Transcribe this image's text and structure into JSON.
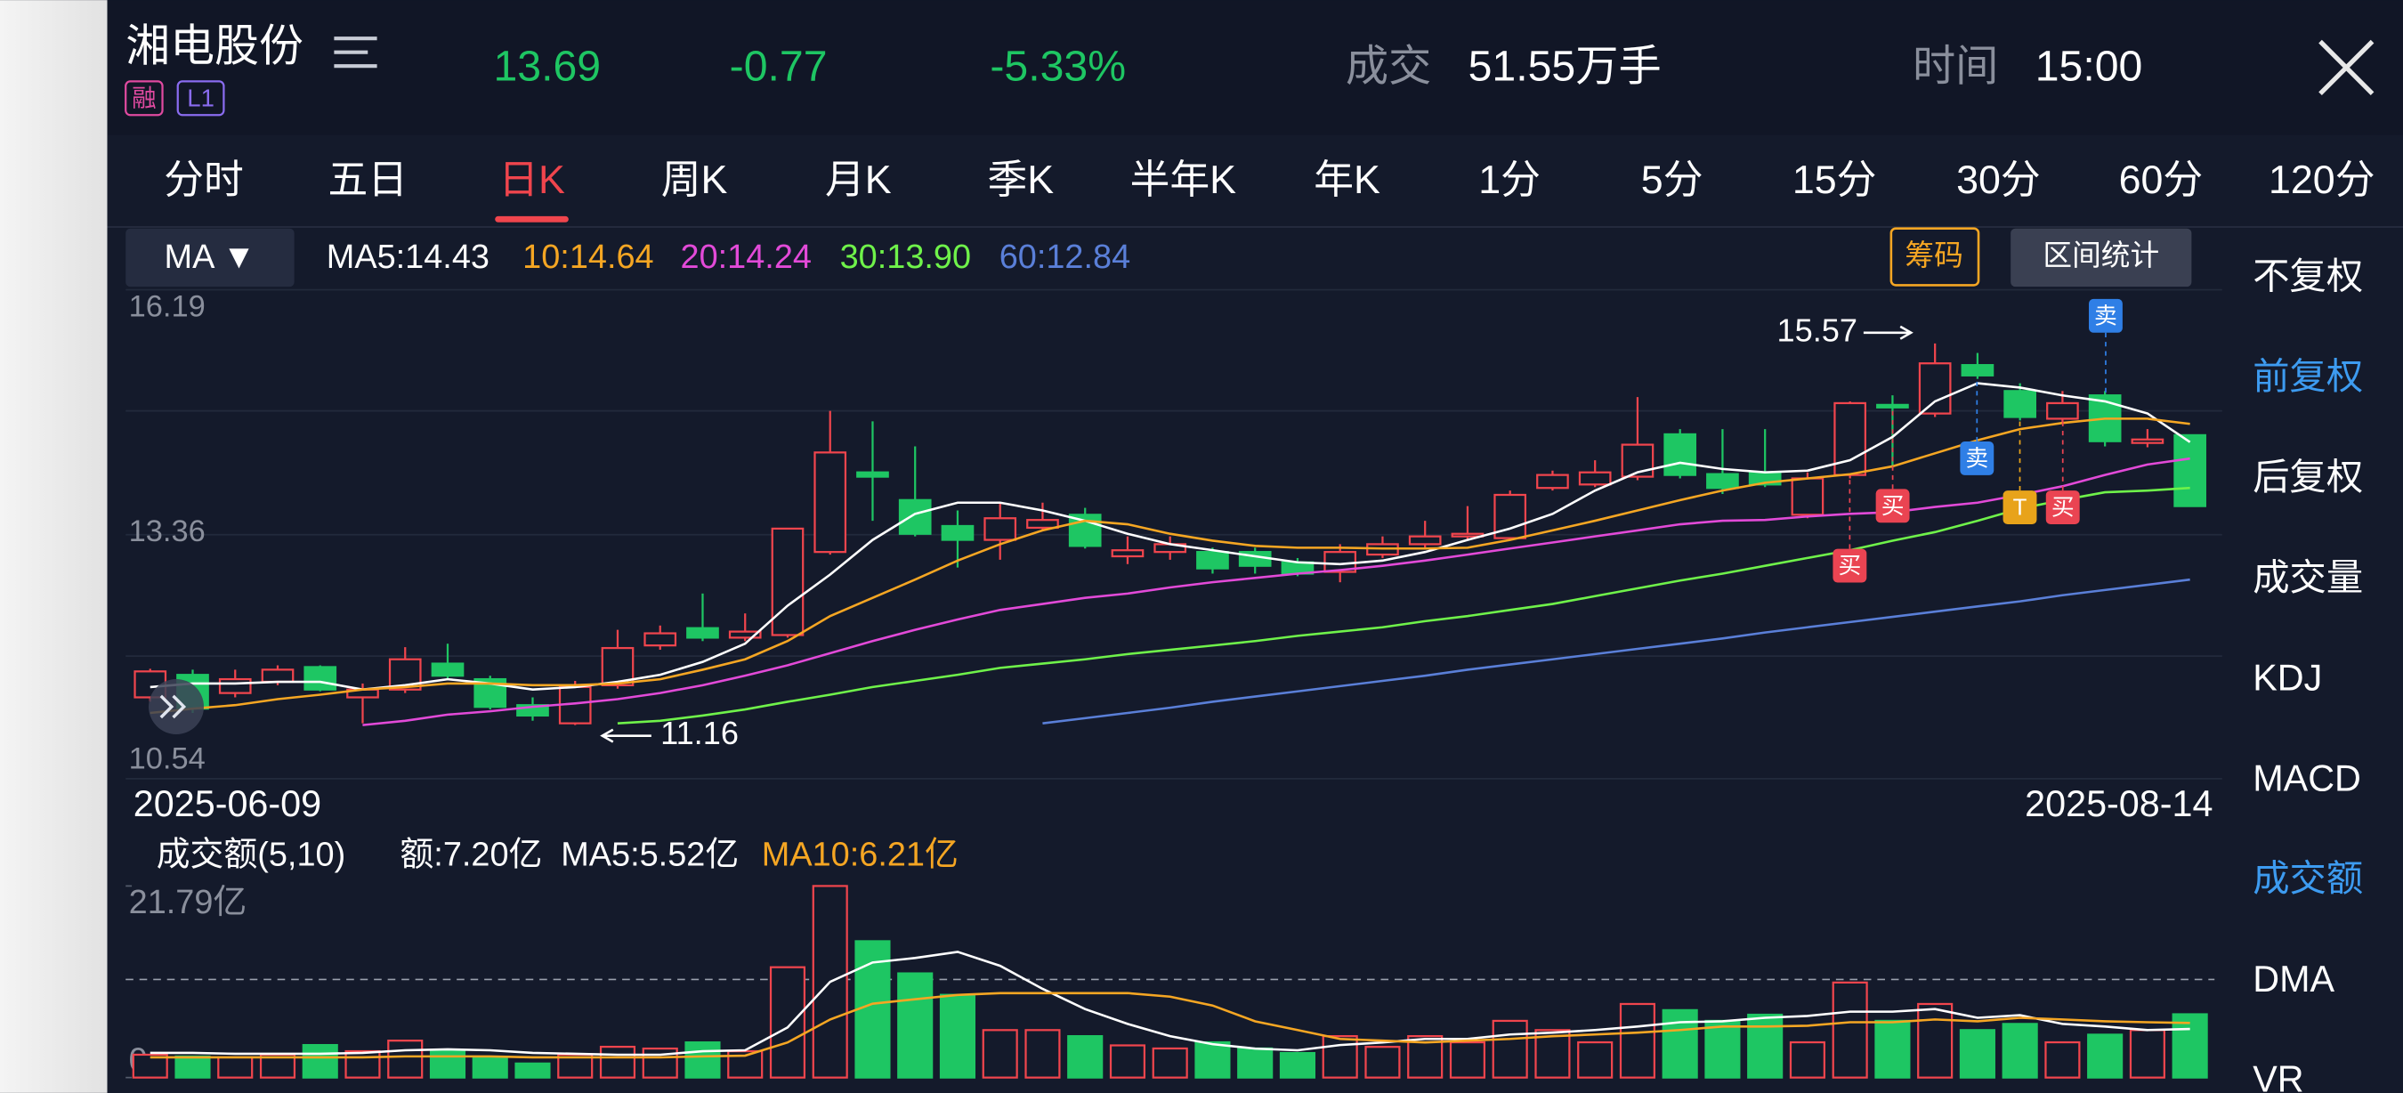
{
  "header": {
    "name": "湘电股份",
    "tags": [
      "融",
      "L1"
    ],
    "price": "13.69",
    "change": "-0.77",
    "change_pct": "-5.33%",
    "volume_label": "成交",
    "volume": "51.55万手",
    "time_label": "时间",
    "time": "15:00"
  },
  "tabs": [
    "分时",
    "五日",
    "日K",
    "周K",
    "月K",
    "季K",
    "半年K",
    "年K",
    "1分",
    "5分",
    "15分",
    "30分",
    "60分",
    "120分"
  ],
  "indicator_selector": "MA ▼",
  "buttons": [
    "筹码",
    "区间统计"
  ],
  "side_menu": [
    "不复权",
    "前复权",
    "后复权",
    "成交量",
    "KDJ",
    "MACD",
    "成交额",
    "DMA",
    "VR"
  ],
  "signals": [
    "卖",
    "卖",
    "买",
    "买",
    "T",
    "买"
  ],
  "chart_data": [
    {
      "type": "candlestick",
      "categories": [
        "2025-06-09",
        null,
        null,
        null,
        null,
        null,
        null,
        null,
        null,
        null,
        null,
        null,
        null,
        null,
        null,
        null,
        null,
        null,
        null,
        null,
        null,
        null,
        null,
        null,
        null,
        null,
        null,
        null,
        null,
        null,
        null,
        null,
        null,
        null,
        null,
        null,
        null,
        null,
        null,
        null,
        null,
        null,
        null,
        null,
        null,
        null,
        null,
        null,
        "2025-08-14"
      ],
      "open": [
        11.48,
        11.74,
        11.53,
        11.66,
        11.83,
        11.48,
        11.57,
        11.87,
        11.69,
        11.39,
        11.18,
        11.62,
        12.08,
        12.28,
        12.17,
        12.2,
        13.16,
        14.08,
        13.76,
        13.46,
        13.3,
        13.44,
        13.59,
        13.11,
        13.16,
        13.16,
        13.16,
        13.04,
        12.93,
        13.13,
        13.25,
        13.34,
        13.32,
        13.9,
        13.94,
        14.03,
        14.52,
        14.06,
        14.08,
        13.59,
        14.05,
        14.86,
        14.76,
        15.32,
        15.02,
        14.7,
        14.97,
        14.42,
        14.51
      ],
      "high": [
        11.81,
        11.8,
        11.8,
        11.85,
        11.85,
        11.64,
        12.06,
        12.1,
        11.73,
        11.48,
        11.67,
        12.26,
        12.31,
        12.68,
        12.45,
        13.43,
        14.79,
        14.67,
        14.38,
        13.64,
        13.73,
        13.73,
        13.67,
        13.34,
        13.34,
        13.21,
        13.21,
        13.09,
        13.25,
        13.34,
        13.52,
        13.69,
        13.87,
        14.1,
        14.22,
        14.95,
        14.58,
        14.58,
        14.58,
        14.08,
        14.9,
        14.97,
        15.57,
        15.46,
        15.11,
        15.02,
        15.02,
        14.58,
        14.51
      ],
      "low": [
        11.43,
        11.3,
        11.48,
        11.62,
        11.55,
        11.18,
        11.53,
        11.69,
        11.34,
        11.21,
        11.16,
        11.58,
        12.03,
        12.13,
        12.13,
        12.17,
        13.13,
        13.52,
        13.34,
        12.98,
        13.07,
        13.41,
        13.2,
        13.02,
        13.07,
        12.91,
        12.91,
        12.88,
        12.81,
        13.09,
        13.2,
        13.29,
        13.29,
        13.87,
        13.91,
        13.99,
        14.01,
        13.83,
        13.91,
        13.55,
        14.01,
        14.13,
        14.72,
        15.16,
        14.68,
        14.65,
        14.38,
        14.37,
        13.69
      ],
      "close": [
        11.78,
        11.35,
        11.69,
        11.8,
        11.57,
        11.57,
        11.92,
        11.73,
        11.37,
        11.27,
        11.6,
        12.05,
        12.22,
        12.17,
        12.24,
        13.43,
        14.31,
        14.03,
        13.37,
        13.3,
        13.55,
        13.53,
        13.23,
        13.18,
        13.25,
        12.97,
        13.0,
        12.91,
        13.16,
        13.25,
        13.34,
        13.37,
        13.82,
        14.05,
        14.08,
        14.4,
        14.05,
        13.9,
        13.94,
        14.01,
        14.88,
        14.83,
        15.34,
        15.2,
        14.72,
        14.88,
        14.44,
        14.46,
        13.69
      ],
      "up_color": "#f0454d",
      "down_color": "#1ec663",
      "ylim": [
        10.54,
        16.19
      ],
      "yticks": [
        10.54,
        13.36,
        16.19
      ],
      "grid": true,
      "annotations": [
        15.57,
        11.16
      ],
      "series": [
        {
          "name": "MA5:14.43",
          "color": "#ffffff",
          "values": [
            11.6,
            11.64,
            11.64,
            11.66,
            11.66,
            11.57,
            11.62,
            11.69,
            11.64,
            11.57,
            11.6,
            11.66,
            11.74,
            11.89,
            12.1,
            12.54,
            12.9,
            13.3,
            13.6,
            13.73,
            13.73,
            13.64,
            13.52,
            13.37,
            13.25,
            13.18,
            13.11,
            13.04,
            13.02,
            13.06,
            13.16,
            13.3,
            13.43,
            13.6,
            13.87,
            14.08,
            14.19,
            14.12,
            14.08,
            14.1,
            14.22,
            14.49,
            14.9,
            15.11,
            15.06,
            14.97,
            14.9,
            14.76,
            14.43
          ]
        },
        {
          "name": "10:14.64",
          "color": "#f5a623",
          "values": [
            11.3,
            11.35,
            11.39,
            11.46,
            11.51,
            11.57,
            11.6,
            11.64,
            11.64,
            11.62,
            11.62,
            11.64,
            11.69,
            11.8,
            11.92,
            12.13,
            12.42,
            12.63,
            12.84,
            13.06,
            13.25,
            13.41,
            13.52,
            13.48,
            13.37,
            13.29,
            13.23,
            13.21,
            13.21,
            13.2,
            13.2,
            13.21,
            13.3,
            13.41,
            13.52,
            13.64,
            13.76,
            13.87,
            13.96,
            14.01,
            14.06,
            14.15,
            14.3,
            14.45,
            14.58,
            14.65,
            14.7,
            14.7,
            14.64
          ]
        },
        {
          "name": "20:14.24",
          "color": "#e24ad8",
          "values": [
            null,
            null,
            null,
            null,
            null,
            11.16,
            11.21,
            11.28,
            11.32,
            11.37,
            11.41,
            11.46,
            11.53,
            11.62,
            11.73,
            11.85,
            11.99,
            12.13,
            12.26,
            12.38,
            12.49,
            12.56,
            12.63,
            12.68,
            12.75,
            12.81,
            12.86,
            12.91,
            12.95,
            13.0,
            13.06,
            13.13,
            13.2,
            13.27,
            13.34,
            13.41,
            13.48,
            13.52,
            13.53,
            13.57,
            13.6,
            13.62,
            13.68,
            13.73,
            13.82,
            13.92,
            14.05,
            14.17,
            14.24
          ]
        },
        {
          "name": "30:13.90",
          "color": "#6ff24a",
          "values": [
            null,
            null,
            null,
            null,
            null,
            null,
            null,
            null,
            null,
            null,
            null,
            11.18,
            11.21,
            11.27,
            11.34,
            11.43,
            11.51,
            11.6,
            11.67,
            11.74,
            11.82,
            11.87,
            11.92,
            11.98,
            12.03,
            12.08,
            12.13,
            12.19,
            12.24,
            12.29,
            12.36,
            12.42,
            12.49,
            12.56,
            12.65,
            12.74,
            12.83,
            12.91,
            13.0,
            13.09,
            13.18,
            13.29,
            13.39,
            13.52,
            13.66,
            13.76,
            13.85,
            13.87,
            13.9
          ]
        },
        {
          "name": "60:12.84",
          "color": "#5a7fd8",
          "values": [
            null,
            null,
            null,
            null,
            null,
            null,
            null,
            null,
            null,
            null,
            null,
            null,
            null,
            null,
            null,
            null,
            null,
            null,
            null,
            null,
            null,
            11.18,
            11.24,
            11.3,
            11.36,
            11.43,
            11.49,
            11.55,
            11.61,
            11.67,
            11.73,
            11.8,
            11.86,
            11.92,
            11.98,
            12.04,
            12.1,
            12.16,
            12.23,
            12.29,
            12.35,
            12.41,
            12.47,
            12.53,
            12.59,
            12.66,
            12.72,
            12.78,
            12.84
          ]
        }
      ]
    },
    {
      "type": "bar",
      "title": "成交额(5,10)",
      "value_label": "额:7.20亿",
      "values": [
        2.6,
        2.4,
        2.3,
        2.6,
        3.7,
        3.0,
        4.2,
        3.0,
        2.3,
        1.6,
        2.6,
        3.5,
        3.3,
        4.0,
        3.0,
        12.55,
        21.79,
        15.51,
        11.85,
        9.41,
        5.4,
        5.4,
        4.71,
        3.66,
        3.31,
        4.01,
        3.31,
        2.79,
        4.71,
        3.49,
        4.71,
        4.01,
        6.45,
        5.4,
        4.01,
        8.37,
        7.67,
        6.45,
        7.15,
        4.01,
        10.81,
        6.45,
        8.37,
        5.4,
        6.1,
        4.01,
        4.88,
        5.4,
        7.2
      ],
      "ylim": [
        0,
        21.79
      ],
      "yticks": [
        0,
        {
          "value": 21.79,
          "label": "21.79亿"
        }
      ],
      "series": [
        {
          "name": "MA5:5.52亿",
          "color": "#ffffff",
          "values": [
            2.8,
            2.8,
            2.7,
            2.7,
            2.7,
            2.8,
            3.1,
            3.2,
            3.1,
            2.8,
            2.7,
            2.6,
            2.6,
            3.0,
            3.1,
            5.7,
            10.9,
            13.1,
            13.6,
            14.3,
            12.7,
            10.1,
            7.8,
            6.1,
            4.7,
            3.8,
            3.3,
            3.1,
            3.7,
            4.0,
            4.4,
            4.4,
            4.9,
            5.1,
            5.4,
            5.8,
            6.3,
            6.4,
            6.8,
            7.0,
            7.5,
            7.5,
            7.8,
            6.8,
            7.1,
            6.1,
            5.8,
            5.4,
            5.52
          ]
        },
        {
          "name": "MA10:6.21亿",
          "color": "#f5a623",
          "values": [
            2.3,
            2.3,
            2.3,
            2.3,
            2.3,
            2.3,
            2.4,
            2.4,
            2.4,
            2.3,
            2.3,
            2.3,
            2.3,
            2.4,
            2.5,
            4.0,
            6.6,
            8.4,
            8.9,
            9.4,
            9.6,
            9.6,
            9.6,
            9.6,
            9.2,
            8.2,
            6.4,
            5.4,
            4.4,
            4.2,
            4.0,
            4.2,
            4.4,
            4.7,
            4.9,
            5.1,
            5.4,
            5.8,
            5.8,
            5.9,
            6.3,
            6.3,
            6.6,
            6.4,
            6.8,
            6.6,
            6.4,
            6.3,
            6.21
          ]
        }
      ]
    }
  ]
}
